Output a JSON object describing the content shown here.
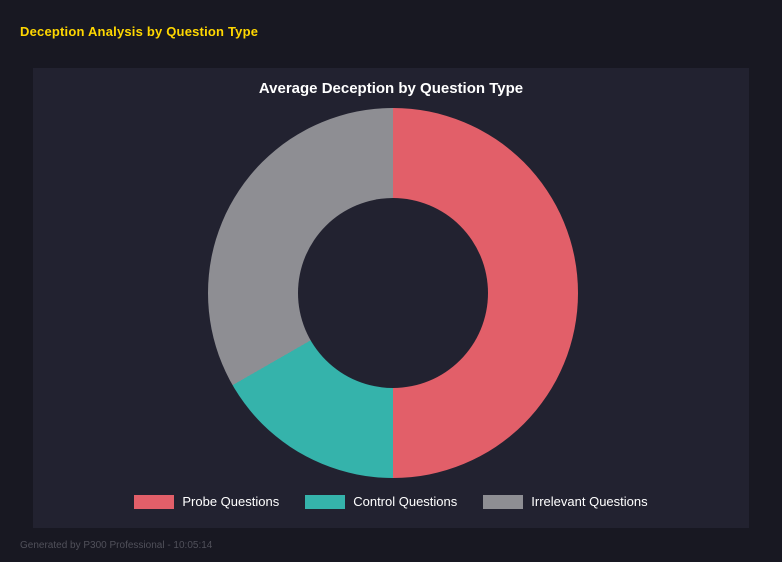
{
  "page": {
    "title": "Deception Analysis by Question Type",
    "footer": "Generated by P300 Professional - 10:05:14"
  },
  "colors": {
    "background": "#181822",
    "panel": "#222230",
    "title": "#ffd700",
    "chart_text": "#ffffff",
    "footer_text": "#50505a"
  },
  "chart_data": {
    "type": "pie",
    "donut": true,
    "title": "Average Deception by Question Type",
    "categories": [
      "Probe Questions",
      "Control Questions",
      "Irrelevant Questions"
    ],
    "values": [
      50,
      16.7,
      33.3
    ],
    "colors": [
      "#e25f69",
      "#35b3ab",
      "#8e8e93"
    ],
    "legend_position": "bottom",
    "start_angle_deg": 0,
    "direction": "clockwise"
  }
}
